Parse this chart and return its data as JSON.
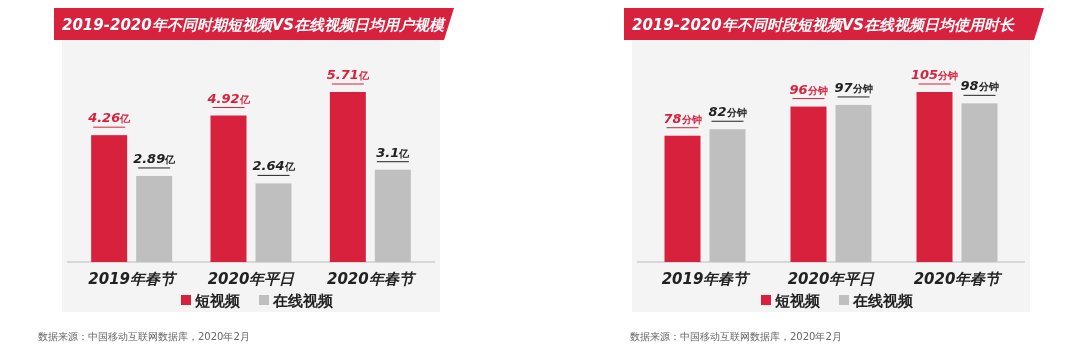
{
  "chart_data": [
    {
      "type": "bar",
      "title": "2019-2020年不同时期短视频VS在线视频日均用户规模",
      "categories": [
        "2019年春节",
        "2020年平日",
        "2020年春节"
      ],
      "legend": "bottom",
      "series": [
        {
          "name": "短视频",
          "color": "#d7213d",
          "values": [
            4.26,
            4.92,
            5.71
          ],
          "value_labels": [
            "4.26亿",
            "4.92亿",
            "5.71亿"
          ]
        },
        {
          "name": "在线视频",
          "color": "#bfbfbf",
          "values": [
            2.89,
            2.64,
            3.1
          ],
          "value_labels": [
            "2.89亿",
            "2.64亿",
            "3.1亿"
          ]
        }
      ],
      "annotations": [
        "数据来源：中国移动互联网数据库，2020年2月"
      ]
    },
    {
      "type": "bar",
      "title": "2019-2020年不同时段短视频VS在线视频日均使用时长",
      "categories": [
        "2019年春节",
        "2020年平日",
        "2020年春节"
      ],
      "legend": "bottom",
      "series": [
        {
          "name": "短视频",
          "color": "#d7213d",
          "values": [
            78,
            96,
            105
          ],
          "value_labels": [
            "78分钟",
            "96分钟",
            "105分钟"
          ]
        },
        {
          "name": "在线视频",
          "color": "#bfbfbf",
          "values": [
            82,
            97,
            98
          ],
          "value_labels": [
            "82分钟",
            "97分钟",
            "98分钟"
          ]
        }
      ],
      "annotations": [
        "数据来源：中国移动互联网数据库，2020年2月"
      ]
    }
  ]
}
